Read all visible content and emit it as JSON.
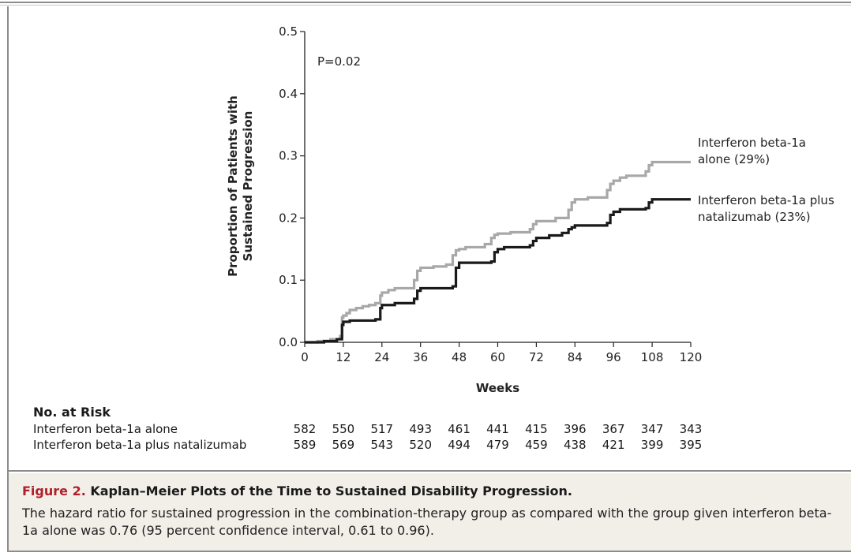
{
  "chart_data": {
    "type": "line",
    "title": "",
    "xlabel": "Weeks",
    "ylabel_line1": "Proportion of Patients with",
    "ylabel_line2": "Sustained Progression",
    "xlim": [
      0,
      120
    ],
    "ylim": [
      0,
      0.5
    ],
    "x_ticks": [
      0,
      12,
      24,
      36,
      48,
      60,
      72,
      84,
      96,
      108,
      120
    ],
    "y_ticks": [
      0.0,
      0.1,
      0.2,
      0.3,
      0.4,
      0.5
    ],
    "y_tick_labels": [
      "0.0",
      "0.1",
      "0.2",
      "0.3",
      "0.4",
      "0.5"
    ],
    "grid": false,
    "annotation": "P=0.02",
    "series": [
      {
        "name_line1": "Interferon beta-1a",
        "name_line2": "alone (29%)",
        "color": "#a8a8a8",
        "step_x": [
          0,
          4,
          8,
          11,
          11.6,
          12,
          13,
          14,
          16,
          18,
          20,
          22,
          23.5,
          24,
          26,
          28,
          34,
          35,
          36,
          40,
          44,
          46,
          47,
          48,
          50,
          56,
          58,
          59,
          60,
          64,
          70,
          71,
          72,
          78,
          82,
          83,
          84,
          88,
          94,
          95,
          96,
          98,
          100,
          106,
          107,
          108,
          116
        ],
        "step_y": [
          0,
          0.002,
          0.005,
          0.01,
          0.04,
          0.043,
          0.047,
          0.052,
          0.055,
          0.058,
          0.06,
          0.063,
          0.075,
          0.08,
          0.084,
          0.087,
          0.1,
          0.115,
          0.12,
          0.122,
          0.125,
          0.14,
          0.148,
          0.15,
          0.153,
          0.158,
          0.168,
          0.173,
          0.175,
          0.177,
          0.182,
          0.19,
          0.195,
          0.2,
          0.213,
          0.225,
          0.23,
          0.233,
          0.245,
          0.255,
          0.26,
          0.265,
          0.268,
          0.275,
          0.285,
          0.29,
          0.29
        ]
      },
      {
        "name_line1": "Interferon beta-1a plus",
        "name_line2": "natalizumab (23%)",
        "color": "#1a1a1a",
        "step_x": [
          0,
          6,
          10,
          11.6,
          12,
          14,
          22,
          23.5,
          24,
          28,
          34,
          35,
          36,
          46,
          47,
          48,
          58,
          59,
          60,
          62,
          70,
          71,
          72,
          76,
          80,
          82,
          83,
          84,
          94,
          95,
          96,
          98,
          106,
          107,
          108,
          116
        ],
        "step_y": [
          0,
          0.002,
          0.005,
          0.028,
          0.033,
          0.035,
          0.037,
          0.055,
          0.06,
          0.063,
          0.07,
          0.083,
          0.087,
          0.09,
          0.12,
          0.128,
          0.13,
          0.145,
          0.15,
          0.153,
          0.156,
          0.163,
          0.168,
          0.172,
          0.176,
          0.182,
          0.185,
          0.188,
          0.192,
          0.205,
          0.21,
          0.214,
          0.216,
          0.225,
          0.23,
          0.23
        ]
      }
    ]
  },
  "risk_table": {
    "heading": "No. at Risk",
    "rows": [
      {
        "label": "Interferon beta-1a alone",
        "values": [
          "582",
          "550",
          "517",
          "493",
          "461",
          "441",
          "415",
          "396",
          "367",
          "347",
          "343"
        ]
      },
      {
        "label": "Interferon beta-1a plus natalizumab",
        "values": [
          "589",
          "569",
          "543",
          "520",
          "494",
          "479",
          "459",
          "438",
          "421",
          "399",
          "395"
        ]
      }
    ]
  },
  "caption": {
    "figure_label": "Figure 2.",
    "title": "Kaplan–Meier Plots of the Time to Sustained Disability Progression.",
    "body": "The hazard ratio for sustained progression in the combination-therapy group as compared with the group given interferon beta-1a alone was 0.76 (95 percent confidence interval, 0.61 to 0.96)."
  }
}
